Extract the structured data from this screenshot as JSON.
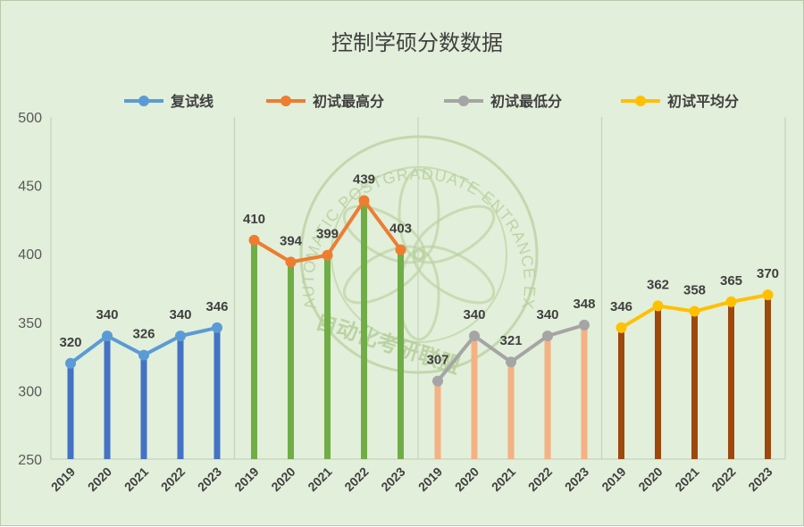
{
  "chart_data": {
    "type": "line",
    "title": "控制学硕分数数据",
    "categories": [
      "2019",
      "2020",
      "2021",
      "2022",
      "2023"
    ],
    "ylim": [
      250,
      500
    ],
    "yticks": [
      250,
      300,
      350,
      400,
      450,
      500
    ],
    "grid": "vertical separators between groups",
    "legend_position": "top",
    "series": [
      {
        "name": "复试线",
        "values": [
          320,
          340,
          326,
          340,
          346
        ],
        "line_color": "#5b9bd5",
        "bar_color": "#4472c4"
      },
      {
        "name": "初试最高分",
        "values": [
          410,
          394,
          399,
          439,
          403
        ],
        "line_color": "#ed7d31",
        "bar_color": "#70ad47"
      },
      {
        "name": "初试最低分",
        "values": [
          307,
          340,
          321,
          340,
          348
        ],
        "line_color": "#a5a5a5",
        "bar_color": "#f4b183"
      },
      {
        "name": "初试平均分",
        "values": [
          346,
          362,
          358,
          365,
          370
        ],
        "line_color": "#ffc000",
        "bar_color": "#9e480e"
      }
    ]
  },
  "watermark": {
    "arc_text": "AUTOMATIC POSTGRADUATE ENTRANCE EXAMINATION ALLIANCE",
    "cn_text": "自动化考研联盟",
    "color": "#b5cf9a"
  }
}
